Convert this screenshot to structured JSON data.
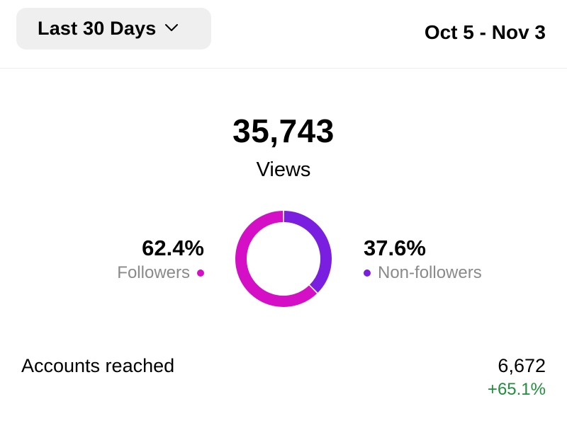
{
  "header": {
    "range_button_label": "Last 30 Days",
    "date_range": "Oct 5 - Nov 3"
  },
  "summary": {
    "total_views": "35,743",
    "total_label": "Views"
  },
  "breakdown": {
    "followers": {
      "percent_text": "62.4%",
      "label": "Followers",
      "value": 62.4,
      "color": "#d40fc6"
    },
    "non_followers": {
      "percent_text": "37.6%",
      "label": "Non-followers",
      "value": 37.6,
      "color": "#7a1fe0"
    }
  },
  "accounts_reached": {
    "label": "Accounts reached",
    "value": "6,672",
    "change": "+65.1%",
    "change_color": "#1f8f3a"
  },
  "chart_data": {
    "type": "pie",
    "categories": [
      "Followers",
      "Non-followers"
    ],
    "values": [
      62.4,
      37.6
    ],
    "colors": [
      "#d40fc6",
      "#7a1fe0"
    ],
    "title": "Views",
    "style": "donut"
  }
}
